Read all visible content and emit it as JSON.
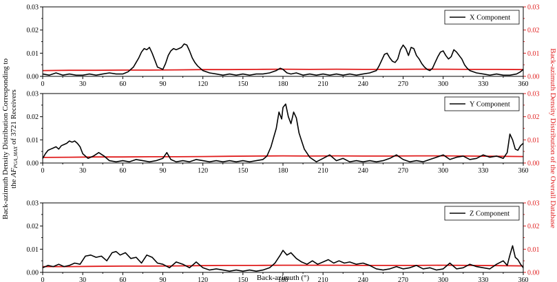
{
  "figure": {
    "left_ylabel_line1": "Back-azimuth Density Distribution Corresponding to",
    "left_ylabel_line2_pre": "the ",
    "left_ylabel_italic": "AF",
    "left_ylabel_sub": "PGA_MAX",
    "left_ylabel_line2_post": " of 3721 Receivers",
    "right_ylabel": "Back-azimuth Density Distribution of the Overall Database",
    "colors": {
      "receivers": "#000000",
      "database": "#e01b1b",
      "axes": "#000000"
    }
  },
  "chart_data": [
    {
      "type": "line",
      "legend": "X Component",
      "legend_location": "top-right",
      "xlabel": "",
      "xlim": [
        0,
        360
      ],
      "ylim": [
        0,
        0.03
      ],
      "ylim_right": [
        0,
        0.03
      ],
      "xticks": [
        "0",
        "30",
        "60",
        "90",
        "120",
        "150",
        "180",
        "210",
        "240",
        "270",
        "300",
        "330",
        "360"
      ],
      "yticks_left": [
        "0.00",
        "0.01",
        "0.02",
        "0.03"
      ],
      "yticks_right": [
        "0.00",
        "0.01",
        "0.02",
        "0.03"
      ],
      "series": [
        {
          "name": "X Component",
          "color": "#000000",
          "x": [
            0,
            5,
            10,
            15,
            20,
            25,
            30,
            35,
            40,
            45,
            50,
            55,
            60,
            62,
            64,
            66,
            68,
            70,
            72,
            74,
            76,
            78,
            80,
            82,
            84,
            86,
            88,
            90,
            92,
            94,
            96,
            98,
            100,
            102,
            104,
            106,
            108,
            110,
            112,
            114,
            116,
            118,
            120,
            125,
            130,
            135,
            140,
            145,
            150,
            155,
            160,
            165,
            170,
            175,
            178,
            180,
            183,
            186,
            190,
            195,
            200,
            205,
            210,
            215,
            220,
            225,
            230,
            235,
            240,
            245,
            250,
            252,
            254,
            256,
            258,
            260,
            262,
            264,
            266,
            268,
            270,
            272,
            274,
            276,
            278,
            280,
            282,
            284,
            286,
            288,
            290,
            292,
            294,
            296,
            298,
            300,
            302,
            304,
            306,
            308,
            310,
            312,
            314,
            316,
            318,
            320,
            325,
            330,
            335,
            340,
            345,
            350,
            355,
            358,
            360
          ],
          "y": [
            0.001,
            0.0005,
            0.0015,
            0.0005,
            0.001,
            0.0005,
            0.0005,
            0.001,
            0.0005,
            0.001,
            0.0015,
            0.001,
            0.001,
            0.0015,
            0.002,
            0.003,
            0.004,
            0.006,
            0.008,
            0.0105,
            0.012,
            0.0115,
            0.0125,
            0.01,
            0.007,
            0.004,
            0.0035,
            0.003,
            0.0055,
            0.009,
            0.011,
            0.012,
            0.0115,
            0.012,
            0.0125,
            0.014,
            0.0135,
            0.011,
            0.008,
            0.006,
            0.0045,
            0.0035,
            0.0025,
            0.0015,
            0.001,
            0.0005,
            0.001,
            0.0005,
            0.001,
            0.0005,
            0.001,
            0.001,
            0.0015,
            0.0025,
            0.0035,
            0.003,
            0.0015,
            0.001,
            0.0015,
            0.0005,
            0.001,
            0.0005,
            0.001,
            0.0005,
            0.001,
            0.0005,
            0.001,
            0.0005,
            0.001,
            0.0015,
            0.0025,
            0.0045,
            0.007,
            0.0095,
            0.01,
            0.008,
            0.0065,
            0.006,
            0.0075,
            0.0115,
            0.0135,
            0.012,
            0.009,
            0.0125,
            0.012,
            0.009,
            0.0075,
            0.0055,
            0.004,
            0.003,
            0.0025,
            0.0035,
            0.006,
            0.0085,
            0.0105,
            0.011,
            0.009,
            0.0075,
            0.0085,
            0.0115,
            0.0105,
            0.009,
            0.0075,
            0.005,
            0.0035,
            0.0025,
            0.0015,
            0.001,
            0.0005,
            0.001,
            0.0005,
            0.0005,
            0.001,
            0.002,
            0.003
          ]
        },
        {
          "name": "",
          "color": "#e01b1b",
          "x": [
            0,
            20,
            40,
            60,
            80,
            100,
            120,
            140,
            160,
            180,
            200,
            220,
            240,
            260,
            280,
            300,
            320,
            340,
            360
          ],
          "y": [
            0.0025,
            0.0026,
            0.0026,
            0.0027,
            0.0027,
            0.0028,
            0.0029,
            0.0029,
            0.003,
            0.0031,
            0.003,
            0.0031,
            0.003,
            0.003,
            0.0031,
            0.0031,
            0.003,
            0.003,
            0.0029
          ]
        }
      ]
    },
    {
      "type": "line",
      "legend": "Y Component",
      "legend_location": "top-right",
      "xlabel": "",
      "xlim": [
        0,
        360
      ],
      "ylim": [
        0,
        0.03
      ],
      "ylim_right": [
        0,
        0.03
      ],
      "xticks": [
        "0",
        "30",
        "60",
        "90",
        "120",
        "150",
        "180",
        "210",
        "240",
        "270",
        "300",
        "330",
        "360"
      ],
      "yticks_left": [
        "0.00",
        "0.01",
        "0.02",
        "0.03"
      ],
      "yticks_right": [
        "0.00",
        "0.01",
        "0.02",
        "0.03"
      ],
      "series": [
        {
          "name": "Y Component",
          "color": "#000000",
          "x": [
            0,
            2,
            4,
            6,
            8,
            10,
            12,
            14,
            16,
            18,
            20,
            22,
            24,
            26,
            28,
            30,
            34,
            38,
            42,
            46,
            50,
            55,
            60,
            65,
            70,
            75,
            80,
            85,
            90,
            93,
            96,
            100,
            105,
            110,
            115,
            120,
            125,
            130,
            135,
            140,
            145,
            150,
            155,
            160,
            165,
            168,
            171,
            173,
            175,
            177,
            179,
            180,
            182,
            184,
            186,
            188,
            190,
            192,
            194,
            196,
            200,
            205,
            210,
            215,
            220,
            225,
            230,
            235,
            240,
            245,
            250,
            255,
            260,
            265,
            270,
            275,
            280,
            285,
            290,
            295,
            300,
            305,
            310,
            315,
            320,
            325,
            330,
            335,
            340,
            345,
            348,
            350,
            352,
            354,
            356,
            358,
            360
          ],
          "y": [
            0.002,
            0.004,
            0.0055,
            0.006,
            0.0065,
            0.007,
            0.006,
            0.0075,
            0.008,
            0.0085,
            0.0095,
            0.009,
            0.0095,
            0.0085,
            0.007,
            0.004,
            0.002,
            0.003,
            0.0045,
            0.003,
            0.001,
            0.0005,
            0.001,
            0.0005,
            0.0015,
            0.001,
            0.0005,
            0.001,
            0.002,
            0.0045,
            0.0015,
            0.0005,
            0.001,
            0.0005,
            0.0015,
            0.001,
            0.0005,
            0.001,
            0.0005,
            0.001,
            0.0005,
            0.001,
            0.0005,
            0.001,
            0.0015,
            0.003,
            0.007,
            0.011,
            0.015,
            0.022,
            0.019,
            0.024,
            0.0255,
            0.02,
            0.017,
            0.022,
            0.0195,
            0.013,
            0.0095,
            0.006,
            0.0025,
            0.0005,
            0.002,
            0.0035,
            0.001,
            0.002,
            0.0005,
            0.001,
            0.0005,
            0.001,
            0.0005,
            0.001,
            0.002,
            0.0035,
            0.0015,
            0.0005,
            0.001,
            0.0005,
            0.0015,
            0.0025,
            0.0035,
            0.0015,
            0.0025,
            0.003,
            0.0015,
            0.002,
            0.0035,
            0.0025,
            0.003,
            0.002,
            0.0045,
            0.0125,
            0.01,
            0.006,
            0.0055,
            0.0075,
            0.0085
          ]
        },
        {
          "name": "",
          "color": "#e01b1b",
          "x": [
            0,
            20,
            40,
            60,
            80,
            100,
            120,
            140,
            160,
            180,
            200,
            220,
            240,
            260,
            280,
            300,
            320,
            340,
            360
          ],
          "y": [
            0.0024,
            0.0025,
            0.0026,
            0.0026,
            0.0027,
            0.0027,
            0.0028,
            0.0029,
            0.003,
            0.0031,
            0.003,
            0.0031,
            0.003,
            0.003,
            0.0031,
            0.0031,
            0.003,
            0.0029,
            0.0028
          ]
        }
      ]
    },
    {
      "type": "line",
      "legend": "Z Component",
      "legend_location": "top-right",
      "xlabel": "Back-azimuth (°)",
      "xlim": [
        0,
        360
      ],
      "ylim": [
        0,
        0.03
      ],
      "ylim_right": [
        0,
        0.03
      ],
      "xticks": [
        "0",
        "30",
        "60",
        "90",
        "120",
        "150",
        "180",
        "210",
        "240",
        "270",
        "300",
        "330",
        "360"
      ],
      "yticks_left": [
        "0.00",
        "0.01",
        "0.02",
        "0.03"
      ],
      "yticks_right": [
        "0.00",
        "0.01",
        "0.02",
        "0.03"
      ],
      "series": [
        {
          "name": "Z Component",
          "color": "#000000",
          "x": [
            0,
            4,
            8,
            12,
            16,
            20,
            24,
            28,
            32,
            36,
            40,
            44,
            48,
            52,
            55,
            58,
            62,
            66,
            70,
            74,
            78,
            82,
            86,
            90,
            95,
            100,
            105,
            110,
            115,
            120,
            125,
            130,
            135,
            140,
            145,
            150,
            155,
            160,
            165,
            170,
            174,
            178,
            180,
            183,
            186,
            190,
            194,
            198,
            202,
            206,
            210,
            214,
            218,
            222,
            226,
            230,
            235,
            240,
            245,
            250,
            255,
            260,
            265,
            270,
            275,
            280,
            285,
            290,
            295,
            300,
            305,
            310,
            315,
            320,
            325,
            330,
            335,
            340,
            345,
            348,
            350,
            352,
            354,
            356,
            358,
            360
          ],
          "y": [
            0.002,
            0.003,
            0.0025,
            0.0035,
            0.0025,
            0.003,
            0.004,
            0.0035,
            0.007,
            0.0075,
            0.0065,
            0.007,
            0.005,
            0.0085,
            0.009,
            0.0075,
            0.0085,
            0.006,
            0.0065,
            0.004,
            0.0075,
            0.0065,
            0.004,
            0.0035,
            0.002,
            0.0045,
            0.0035,
            0.002,
            0.0045,
            0.002,
            0.001,
            0.0015,
            0.001,
            0.0005,
            0.001,
            0.0005,
            0.001,
            0.0005,
            0.001,
            0.002,
            0.004,
            0.0075,
            0.0095,
            0.0075,
            0.0085,
            0.006,
            0.0045,
            0.0035,
            0.005,
            0.0035,
            0.0045,
            0.0055,
            0.004,
            0.005,
            0.004,
            0.0045,
            0.0035,
            0.004,
            0.003,
            0.0015,
            0.001,
            0.0015,
            0.0025,
            0.0015,
            0.002,
            0.003,
            0.0015,
            0.002,
            0.001,
            0.0015,
            0.004,
            0.0015,
            0.002,
            0.0035,
            0.0025,
            0.002,
            0.0015,
            0.0035,
            0.005,
            0.003,
            0.0075,
            0.0115,
            0.0065,
            0.0055,
            0.0035,
            0.002
          ]
        },
        {
          "name": "",
          "color": "#e01b1b",
          "x": [
            0,
            20,
            40,
            60,
            80,
            100,
            120,
            140,
            160,
            180,
            200,
            220,
            240,
            260,
            280,
            300,
            320,
            340,
            360
          ],
          "y": [
            0.0025,
            0.0025,
            0.0026,
            0.0027,
            0.0027,
            0.0028,
            0.0029,
            0.003,
            0.003,
            0.0031,
            0.0031,
            0.0031,
            0.003,
            0.003,
            0.003,
            0.0031,
            0.003,
            0.0029,
            0.0028
          ]
        }
      ]
    }
  ]
}
